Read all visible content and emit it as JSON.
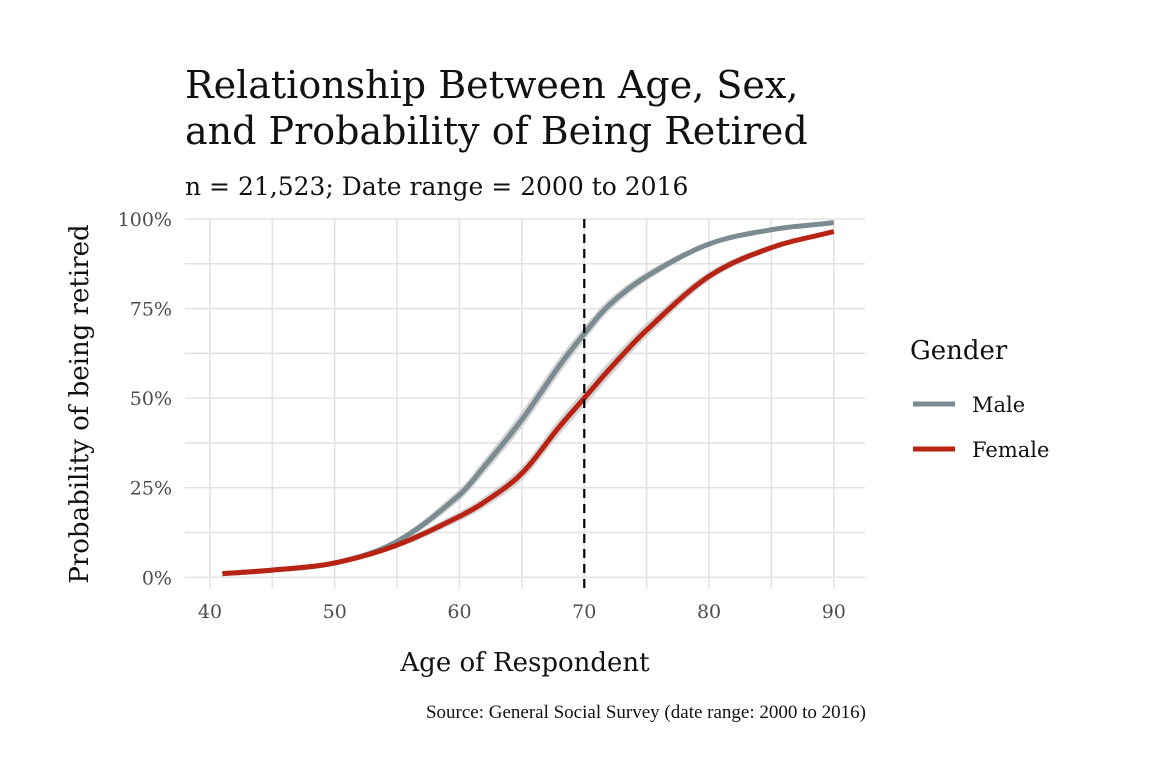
{
  "chart_data": {
    "type": "line",
    "title": "Relationship Between Age, Sex,",
    "title_line2": "and Probability of Being Retired",
    "subtitle": "n = 21,523; Date range = 2000 to 2016",
    "xlabel": "Age of Respondent",
    "ylabel": "Probability of being retired",
    "caption": "Source: General Social Survey (date range: 2000 to 2016)",
    "xlim": [
      38,
      92.5
    ],
    "ylim": [
      -0.03,
      1.0
    ],
    "x_ticks": [
      40,
      50,
      60,
      70,
      80,
      90
    ],
    "x_tick_labels": [
      "40",
      "50",
      "60",
      "70",
      "80",
      "90"
    ],
    "y_ticks": [
      0,
      0.25,
      0.5,
      0.75,
      1.0
    ],
    "y_tick_labels": [
      "0%",
      "25%",
      "50%",
      "75%",
      "100%"
    ],
    "grid": true,
    "vline": {
      "x": 70,
      "style": "dashed",
      "color": "#000000"
    },
    "legend": {
      "title": "Gender",
      "position": "right"
    },
    "series": [
      {
        "name": "Male",
        "color": "#7a8b91",
        "ribbon_color": "#cccccc",
        "x": [
          41,
          45,
          50,
          55,
          60,
          62,
          65,
          68,
          70,
          72,
          75,
          80,
          85,
          90
        ],
        "y": [
          0.01,
          0.02,
          0.04,
          0.1,
          0.23,
          0.31,
          0.44,
          0.59,
          0.68,
          0.76,
          0.84,
          0.93,
          0.97,
          0.99
        ]
      },
      {
        "name": "Female",
        "color": "#b82314",
        "ribbon_color": "#cccccc",
        "x": [
          41,
          45,
          50,
          55,
          60,
          62,
          65,
          68,
          70,
          72,
          75,
          80,
          85,
          90
        ],
        "y": [
          0.01,
          0.02,
          0.04,
          0.09,
          0.17,
          0.21,
          0.29,
          0.42,
          0.5,
          0.58,
          0.69,
          0.84,
          0.92,
          0.965
        ]
      }
    ]
  }
}
